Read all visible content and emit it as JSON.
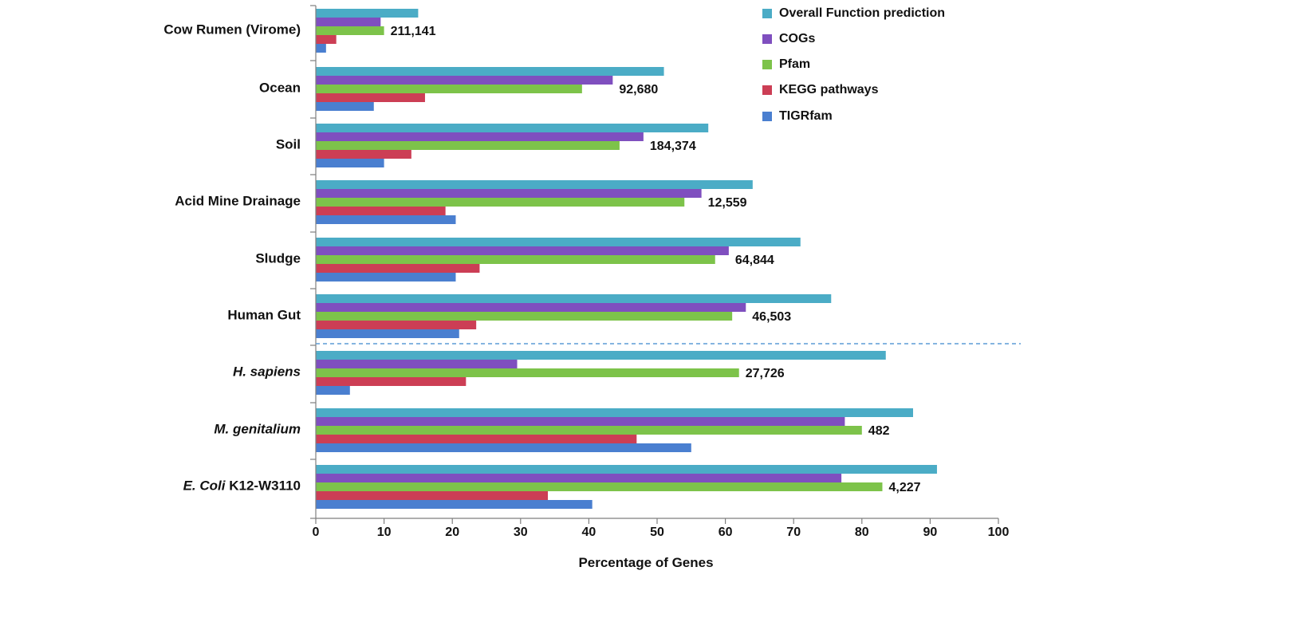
{
  "chart_data": {
    "type": "bar",
    "orientation": "horizontal",
    "xlabel": "Percentage of Genes",
    "xlim": [
      0,
      100
    ],
    "xticks": [
      0,
      10,
      20,
      30,
      40,
      50,
      60,
      70,
      80,
      90,
      100
    ],
    "grid": false,
    "legend_position": "top-right",
    "separator": {
      "style": "dashed",
      "color": "#5b9bd5",
      "between": [
        "Human Gut",
        "H. sapiens"
      ]
    },
    "categories": [
      {
        "label": "Cow Rumen (Virome)",
        "italic_part": "",
        "rest": "Cow Rumen (Virome)",
        "gene_count": "211,141"
      },
      {
        "label": "Ocean",
        "italic_part": "",
        "rest": "Ocean",
        "gene_count": "92,680"
      },
      {
        "label": "Soil",
        "italic_part": "",
        "rest": "Soil",
        "gene_count": "184,374"
      },
      {
        "label": "Acid Mine Drainage",
        "italic_part": "",
        "rest": "Acid Mine Drainage",
        "gene_count": "12,559"
      },
      {
        "label": "Sludge",
        "italic_part": "",
        "rest": "Sludge",
        "gene_count": "64,844"
      },
      {
        "label": "Human Gut",
        "italic_part": "",
        "rest": "Human Gut",
        "gene_count": "46,503"
      },
      {
        "label": "H. sapiens",
        "italic_part": "H. sapiens",
        "rest": "",
        "gene_count": "27,726"
      },
      {
        "label": "M. genitalium",
        "italic_part": "M. genitalium",
        "rest": "",
        "gene_count": "482"
      },
      {
        "label": "E. Coli K12-W3110",
        "italic_part": "E. Coli",
        "rest": " K12-W3110",
        "gene_count": "4,227"
      }
    ],
    "series": [
      {
        "name": "Overall Function prediction",
        "color": "#4bacc6",
        "values": [
          15,
          51,
          57.5,
          64,
          71,
          75.5,
          83.5,
          87.5,
          91
        ]
      },
      {
        "name": "COGs",
        "color": "#7f4fbf",
        "values": [
          9.5,
          43.5,
          48,
          56.5,
          60.5,
          63,
          29.5,
          77.5,
          77
        ]
      },
      {
        "name": "Pfam",
        "color": "#7dc34a",
        "values": [
          10,
          39,
          44.5,
          54,
          58.5,
          61,
          62,
          80,
          83
        ]
      },
      {
        "name": "KEGG pathways",
        "color": "#cc3e55",
        "values": [
          3,
          16,
          14,
          19,
          24,
          23.5,
          22,
          47,
          34
        ]
      },
      {
        "name": "TIGRfam",
        "color": "#4a7fd0",
        "values": [
          1.5,
          8.5,
          10,
          20.5,
          20.5,
          21,
          5,
          55,
          40.5
        ]
      }
    ]
  }
}
